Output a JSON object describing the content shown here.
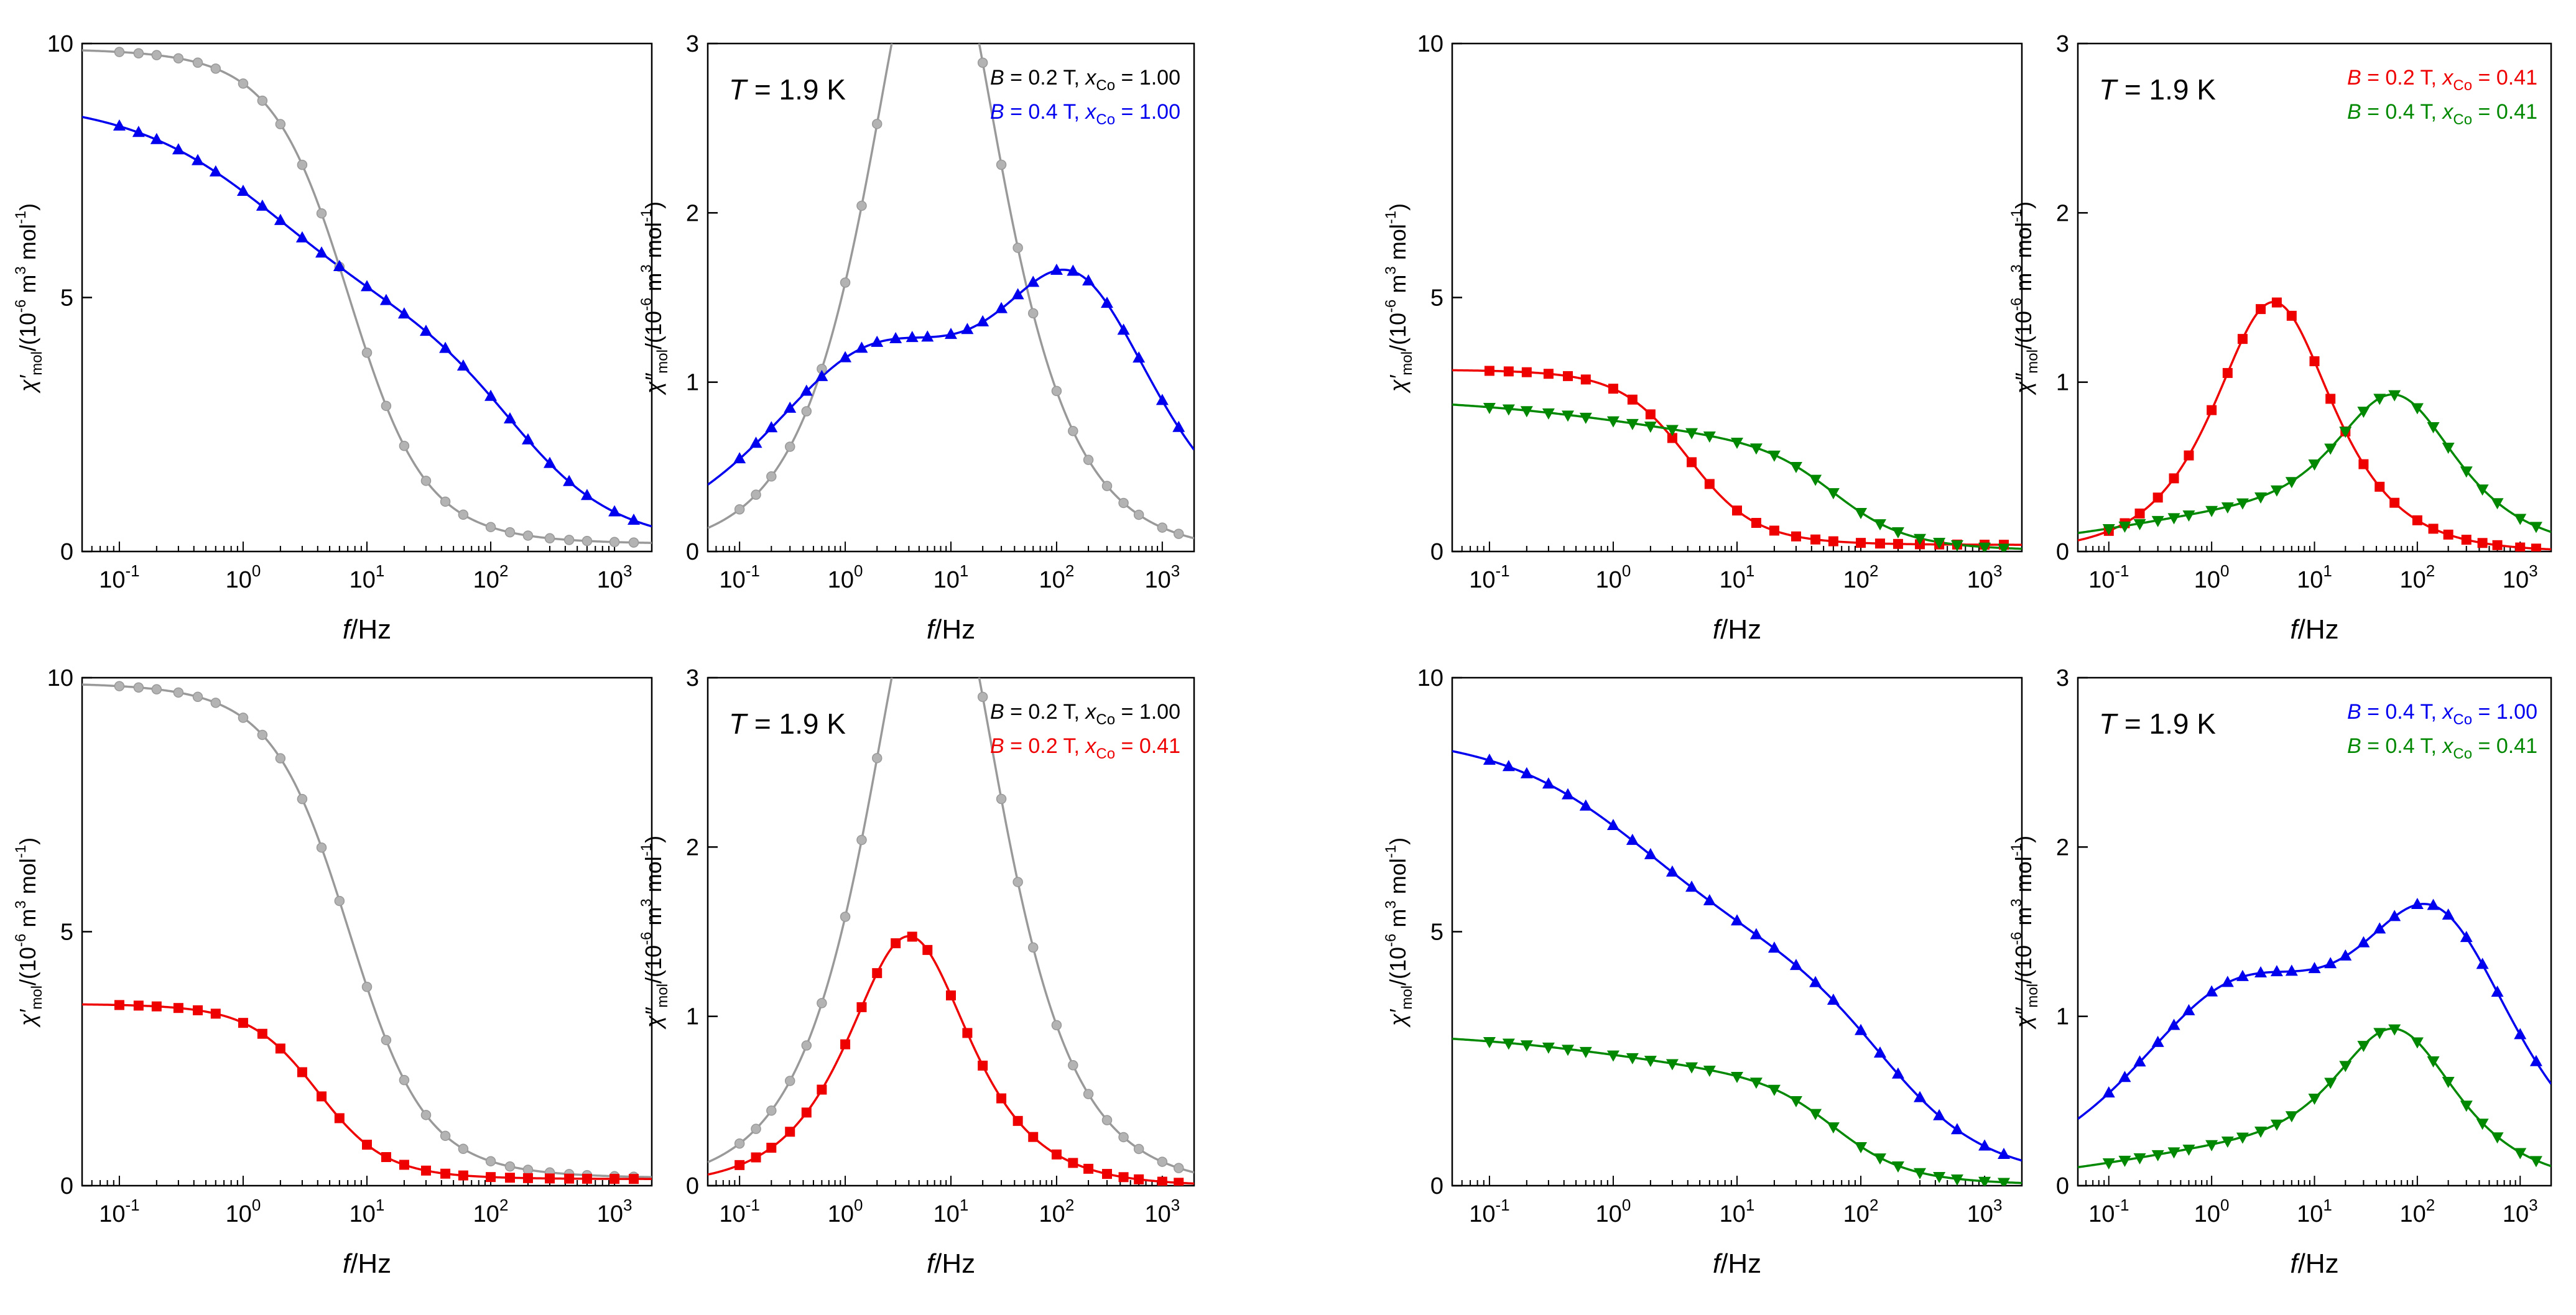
{
  "figure": {
    "colors": {
      "gray": "#999999",
      "gray_marker": "#b3b3b3",
      "blue": "#0000ee",
      "red": "#ee0000",
      "green": "#008800",
      "axis": "#000000"
    }
  },
  "chart_data": [
    {
      "id": "a",
      "type": "line",
      "title": "",
      "xscale": "log",
      "xlim": [
        0.05,
        2000
      ],
      "ylim": [
        0,
        10
      ],
      "yticks": [
        0,
        5,
        10
      ],
      "xticks_exp": [
        -1,
        0,
        1,
        2,
        3
      ],
      "xtick_base": "10",
      "xlabel": {
        "italic": "f",
        "rest": "/Hz"
      },
      "ylabel": {
        "sym": "χ′",
        "sub": "mol",
        "pre": "/(10",
        "exp1": "-6",
        "mid": " m",
        "exp2": "3",
        "mid2": " mol",
        "exp3": "-1",
        "end": ")"
      },
      "temp": null,
      "legend": [],
      "series": [
        {
          "name": "B = 0.2 T, xCo = 1.00",
          "color": "gray",
          "marker": "circle",
          "model": {
            "kind": "real",
            "chiS": 0.15,
            "comps": [
              {
                "d": 9.75,
                "tau": 0.0223,
                "alpha": 0.15
              }
            ]
          }
        },
        {
          "name": "B = 0.4 T, xCo = 1.00",
          "color": "blue",
          "marker": "triangle-up",
          "model": {
            "kind": "real",
            "chiS": 0.1,
            "comps": [
              {
                "d": 4.35,
                "tau": 0.0955,
                "alpha": 0.42
              },
              {
                "d": 4.47,
                "tau": 0.00105,
                "alpha": 0.28
              }
            ]
          }
        }
      ]
    },
    {
      "id": "b",
      "type": "line",
      "xscale": "log",
      "xlim": [
        0.05,
        2000
      ],
      "ylim": [
        0,
        3
      ],
      "yticks": [
        0,
        1,
        2,
        3
      ],
      "xticks_exp": [
        -1,
        0,
        1,
        2,
        3
      ],
      "xtick_base": "10",
      "xlabel": {
        "italic": "f",
        "rest": "/Hz"
      },
      "ylabel": {
        "sym": "χ″",
        "sub": "mol",
        "pre": "/(10",
        "exp1": "-6",
        "mid": " m",
        "exp2": "3",
        "mid2": " mol",
        "exp3": "-1",
        "end": ")"
      },
      "temp": {
        "sym": "T",
        "text": " = 1.9 K"
      },
      "legend": [
        {
          "color": "black",
          "b": "B",
          "t1": " = 0.2 T, ",
          "x": "x",
          "sub": "Co",
          "t2": " = 1.00"
        },
        {
          "color": "blue",
          "b": "B",
          "t1": " = 0.4 T, ",
          "x": "x",
          "sub": "Co",
          "t2": " = 1.00"
        }
      ],
      "series": [
        {
          "name": "B = 0.2 T, xCo = 1.00",
          "color": "gray",
          "marker": "circle",
          "model": {
            "kind": "imag",
            "comps": [
              {
                "d": 9.75,
                "tau": 0.0223,
                "alpha": 0.15
              }
            ]
          }
        },
        {
          "name": "B = 0.4 T, xCo = 1.00",
          "color": "blue",
          "marker": "triangle-up",
          "model": {
            "kind": "imag",
            "comps": [
              {
                "d": 4.35,
                "tau": 0.0955,
                "alpha": 0.42
              },
              {
                "d": 4.47,
                "tau": 0.00105,
                "alpha": 0.28
              }
            ]
          }
        }
      ]
    },
    {
      "id": "c",
      "type": "line",
      "xscale": "log",
      "xlim": [
        0.05,
        2000
      ],
      "ylim": [
        0,
        10
      ],
      "yticks": [
        0,
        5,
        10
      ],
      "xticks_exp": [
        -1,
        0,
        1,
        2,
        3
      ],
      "xtick_base": "10",
      "xlabel": {
        "italic": "f",
        "rest": "/Hz"
      },
      "ylabel": {
        "sym": "χ′",
        "sub": "mol",
        "pre": "/(10",
        "exp1": "-6",
        "mid": " m",
        "exp2": "3",
        "mid2": " mol",
        "exp3": "-1",
        "end": ")"
      },
      "temp": null,
      "legend": [],
      "series": [
        {
          "name": "B = 0.2 T, xCo = 0.41",
          "color": "red",
          "marker": "square",
          "model": {
            "kind": "real",
            "chiS": 0.13,
            "comps": [
              {
                "d": 3.45,
                "tau": 0.0398,
                "alpha": 0.1
              }
            ]
          }
        },
        {
          "name": "B = 0.4 T, xCo = 0.41",
          "color": "green",
          "marker": "triangle-down",
          "model": {
            "kind": "real",
            "chiS": 0.0,
            "comps": [
              {
                "d": 1.05,
                "tau": 0.1,
                "alpha": 0.55
              },
              {
                "d": 2.0,
                "tau": 0.0026,
                "alpha": 0.12
              }
            ]
          }
        }
      ]
    },
    {
      "id": "d",
      "type": "line",
      "xscale": "log",
      "xlim": [
        0.05,
        2000
      ],
      "ylim": [
        0,
        3
      ],
      "yticks": [
        0,
        1,
        2,
        3
      ],
      "xticks_exp": [
        -1,
        0,
        1,
        2,
        3
      ],
      "xtick_base": "10",
      "xlabel": {
        "italic": "f",
        "rest": "/Hz"
      },
      "ylabel": {
        "sym": "χ″",
        "sub": "mol",
        "pre": "/(10",
        "exp1": "-6",
        "mid": " m",
        "exp2": "3",
        "mid2": " mol",
        "exp3": "-1",
        "end": ")"
      },
      "temp": {
        "sym": "T",
        "text": " = 1.9 K"
      },
      "legend": [
        {
          "color": "red",
          "b": "B",
          "t1": " = 0.2 T, ",
          "x": "x",
          "sub": "Co",
          "t2": " = 0.41"
        },
        {
          "color": "green",
          "b": "B",
          "t1": " = 0.4 T, ",
          "x": "x",
          "sub": "Co",
          "t2": " = 0.41"
        }
      ],
      "series": [
        {
          "name": "B = 0.2 T, xCo = 0.41",
          "color": "red",
          "marker": "square",
          "model": {
            "kind": "imag",
            "comps": [
              {
                "d": 3.45,
                "tau": 0.0398,
                "alpha": 0.1
              }
            ]
          }
        },
        {
          "name": "B = 0.4 T, xCo = 0.41",
          "color": "green",
          "marker": "triangle-down",
          "model": {
            "kind": "imag",
            "comps": [
              {
                "d": 1.05,
                "tau": 0.1,
                "alpha": 0.55
              },
              {
                "d": 2.0,
                "tau": 0.0026,
                "alpha": 0.12
              }
            ]
          }
        }
      ]
    },
    {
      "id": "e",
      "type": "line",
      "xscale": "log",
      "xlim": [
        0.05,
        2000
      ],
      "ylim": [
        0,
        10
      ],
      "yticks": [
        0,
        5,
        10
      ],
      "xticks_exp": [
        -1,
        0,
        1,
        2,
        3
      ],
      "xtick_base": "10",
      "xlabel": {
        "italic": "f",
        "rest": "/Hz"
      },
      "ylabel": {
        "sym": "χ′",
        "sub": "mol",
        "pre": "/(10",
        "exp1": "-6",
        "mid": " m",
        "exp2": "3",
        "mid2": " mol",
        "exp3": "-1",
        "end": ")"
      },
      "temp": null,
      "legend": [],
      "series": [
        {
          "name": "B = 0.2 T, xCo = 1.00",
          "color": "gray",
          "marker": "circle",
          "model": {
            "kind": "real",
            "chiS": 0.15,
            "comps": [
              {
                "d": 9.75,
                "tau": 0.0223,
                "alpha": 0.15
              }
            ]
          }
        },
        {
          "name": "B = 0.2 T, xCo = 0.41",
          "color": "red",
          "marker": "square",
          "model": {
            "kind": "real",
            "chiS": 0.13,
            "comps": [
              {
                "d": 3.45,
                "tau": 0.0398,
                "alpha": 0.1
              }
            ]
          }
        }
      ]
    },
    {
      "id": "f",
      "type": "line",
      "xscale": "log",
      "xlim": [
        0.05,
        2000
      ],
      "ylim": [
        0,
        3
      ],
      "yticks": [
        0,
        1,
        2,
        3
      ],
      "xticks_exp": [
        -1,
        0,
        1,
        2,
        3
      ],
      "xtick_base": "10",
      "xlabel": {
        "italic": "f",
        "rest": "/Hz"
      },
      "ylabel": {
        "sym": "χ″",
        "sub": "mol",
        "pre": "/(10",
        "exp1": "-6",
        "mid": " m",
        "exp2": "3",
        "mid2": " mol",
        "exp3": "-1",
        "end": ")"
      },
      "temp": {
        "sym": "T",
        "text": " = 1.9 K"
      },
      "legend": [
        {
          "color": "black",
          "b": "B",
          "t1": " = 0.2 T, ",
          "x": "x",
          "sub": "Co",
          "t2": " = 1.00"
        },
        {
          "color": "red",
          "b": "B",
          "t1": " = 0.2 T, ",
          "x": "x",
          "sub": "Co",
          "t2": " = 0.41"
        }
      ],
      "series": [
        {
          "name": "B = 0.2 T, xCo = 1.00",
          "color": "gray",
          "marker": "circle",
          "model": {
            "kind": "imag",
            "comps": [
              {
                "d": 9.75,
                "tau": 0.0223,
                "alpha": 0.15
              }
            ]
          }
        },
        {
          "name": "B = 0.2 T, xCo = 0.41",
          "color": "red",
          "marker": "square",
          "model": {
            "kind": "imag",
            "comps": [
              {
                "d": 3.45,
                "tau": 0.0398,
                "alpha": 0.1
              }
            ]
          }
        }
      ]
    },
    {
      "id": "g",
      "type": "line",
      "xscale": "log",
      "xlim": [
        0.05,
        2000
      ],
      "ylim": [
        0,
        10
      ],
      "yticks": [
        0,
        5,
        10
      ],
      "xticks_exp": [
        -1,
        0,
        1,
        2,
        3
      ],
      "xtick_base": "10",
      "xlabel": {
        "italic": "f",
        "rest": "/Hz"
      },
      "ylabel": {
        "sym": "χ′",
        "sub": "mol",
        "pre": "/(10",
        "exp1": "-6",
        "mid": " m",
        "exp2": "3",
        "mid2": " mol",
        "exp3": "-1",
        "end": ")"
      },
      "temp": null,
      "legend": [],
      "series": [
        {
          "name": "B = 0.4 T, xCo = 1.00",
          "color": "blue",
          "marker": "triangle-up",
          "model": {
            "kind": "real",
            "chiS": 0.1,
            "comps": [
              {
                "d": 4.35,
                "tau": 0.0955,
                "alpha": 0.42
              },
              {
                "d": 4.47,
                "tau": 0.00105,
                "alpha": 0.28
              }
            ]
          }
        },
        {
          "name": "B = 0.4 T, xCo = 0.41",
          "color": "green",
          "marker": "triangle-down",
          "model": {
            "kind": "real",
            "chiS": 0.0,
            "comps": [
              {
                "d": 1.05,
                "tau": 0.1,
                "alpha": 0.55
              },
              {
                "d": 2.0,
                "tau": 0.0026,
                "alpha": 0.12
              }
            ]
          }
        }
      ]
    },
    {
      "id": "h",
      "type": "line",
      "xscale": "log",
      "xlim": [
        0.05,
        2000
      ],
      "ylim": [
        0,
        3
      ],
      "yticks": [
        0,
        1,
        2,
        3
      ],
      "xticks_exp": [
        -1,
        0,
        1,
        2,
        3
      ],
      "xtick_base": "10",
      "xlabel": {
        "italic": "f",
        "rest": "/Hz"
      },
      "ylabel": {
        "sym": "χ″",
        "sub": "mol",
        "pre": "/(10",
        "exp1": "-6",
        "mid": " m",
        "exp2": "3",
        "mid2": " mol",
        "exp3": "-1",
        "end": ")"
      },
      "temp": {
        "sym": "T",
        "text": " = 1.9 K"
      },
      "legend": [
        {
          "color": "blue",
          "b": "B",
          "t1": " = 0.4 T, ",
          "x": "x",
          "sub": "Co",
          "t2": " = 1.00"
        },
        {
          "color": "green",
          "b": "B",
          "t1": " = 0.4 T, ",
          "x": "x",
          "sub": "Co",
          "t2": " = 0.41"
        }
      ],
      "series": [
        {
          "name": "B = 0.4 T, xCo = 1.00",
          "color": "blue",
          "marker": "triangle-up",
          "model": {
            "kind": "imag",
            "comps": [
              {
                "d": 4.35,
                "tau": 0.0955,
                "alpha": 0.42
              },
              {
                "d": 4.47,
                "tau": 0.00105,
                "alpha": 0.28
              }
            ]
          }
        },
        {
          "name": "B = 0.4 T, xCo = 0.41",
          "color": "green",
          "marker": "triangle-down",
          "model": {
            "kind": "imag",
            "comps": [
              {
                "d": 1.05,
                "tau": 0.1,
                "alpha": 0.55
              },
              {
                "d": 2.0,
                "tau": 0.0026,
                "alpha": 0.12
              }
            ]
          }
        }
      ]
    }
  ]
}
